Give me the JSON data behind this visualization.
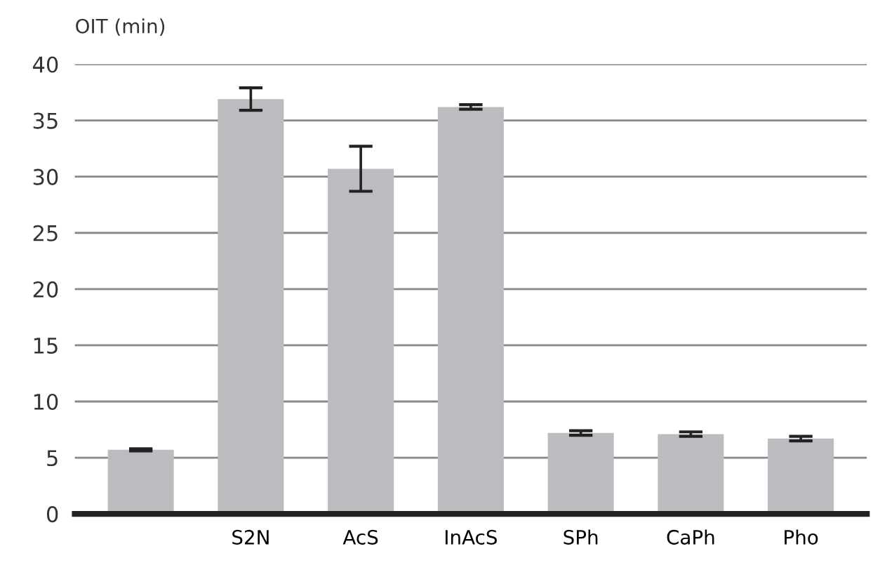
{
  "chart_data": {
    "type": "bar",
    "ylabel": "OIT (min)",
    "categories": [
      null,
      "S2N",
      "AcS",
      "InAcS",
      "SPh",
      "CaPh",
      "Pho"
    ],
    "values": [
      5.7,
      36.9,
      30.7,
      36.2,
      7.2,
      7.1,
      6.7
    ],
    "errors": [
      0.1,
      1,
      2,
      0.2,
      0.2,
      0.2,
      0.2
    ],
    "color": "#bbbcc0",
    "ylim": [
      0,
      40
    ],
    "yticks": [
      0,
      5,
      10,
      15,
      20,
      25,
      30,
      35,
      40
    ],
    "grid": "y"
  }
}
